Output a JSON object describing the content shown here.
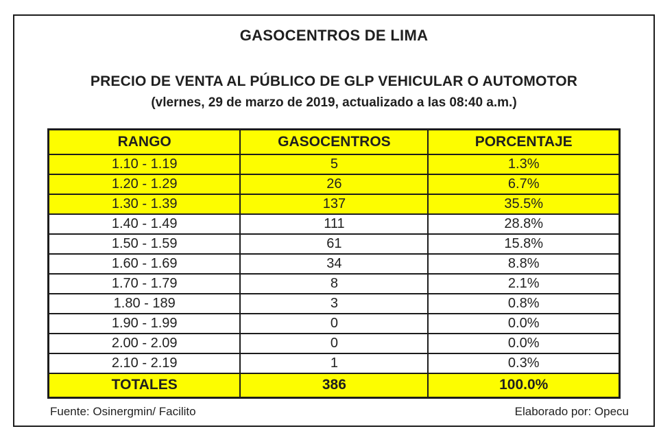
{
  "page": {
    "title": "GASOCENTROS DE LIMA",
    "subtitle": "PRECIO DE VENTA AL PÚBLICO DE GLP VEHICULAR O AUTOMOTOR",
    "date_line": "(vlernes, 29 de marzo de 2019, actualizado a las 08:40 a.m.)"
  },
  "table": {
    "headers": [
      "RANGO",
      "GASOCENTROS",
      "PORCENTAJE"
    ],
    "rows": [
      {
        "rango": "1.10 - 1.19",
        "gasocentros": "5",
        "porcentaje": "1.3%",
        "highlight": true
      },
      {
        "rango": "1.20 - 1.29",
        "gasocentros": "26",
        "porcentaje": "6.7%",
        "highlight": true
      },
      {
        "rango": "1.30 - 1.39",
        "gasocentros": "137",
        "porcentaje": "35.5%",
        "highlight": true
      },
      {
        "rango": "1.40 - 1.49",
        "gasocentros": "111",
        "porcentaje": "28.8%",
        "highlight": false
      },
      {
        "rango": "1.50 - 1.59",
        "gasocentros": "61",
        "porcentaje": "15.8%",
        "highlight": false
      },
      {
        "rango": "1.60 - 1.69",
        "gasocentros": "34",
        "porcentaje": "8.8%",
        "highlight": false
      },
      {
        "rango": "1.70 - 1.79",
        "gasocentros": "8",
        "porcentaje": "2.1%",
        "highlight": false
      },
      {
        "rango": "1.80 - 189",
        "gasocentros": "3",
        "porcentaje": "0.8%",
        "highlight": false
      },
      {
        "rango": "1.90 - 1.99",
        "gasocentros": "0",
        "porcentaje": "0.0%",
        "highlight": false
      },
      {
        "rango": "2.00 - 2.09",
        "gasocentros": "0",
        "porcentaje": "0.0%",
        "highlight": false
      },
      {
        "rango": "2.10 - 2.19",
        "gasocentros": "1",
        "porcentaje": "0.3%",
        "highlight": false
      }
    ],
    "totals": {
      "rango": "TOTALES",
      "gasocentros": "386",
      "porcentaje": "100.0%"
    }
  },
  "footer": {
    "source": "Fuente: Osinergmin/ Facilito",
    "credit": "Elaborado por: Opecu"
  },
  "colors": {
    "highlight_yellow": "#fdfd00",
    "border_black": "#1c1c1c",
    "text_black": "#1f1f1f"
  }
}
